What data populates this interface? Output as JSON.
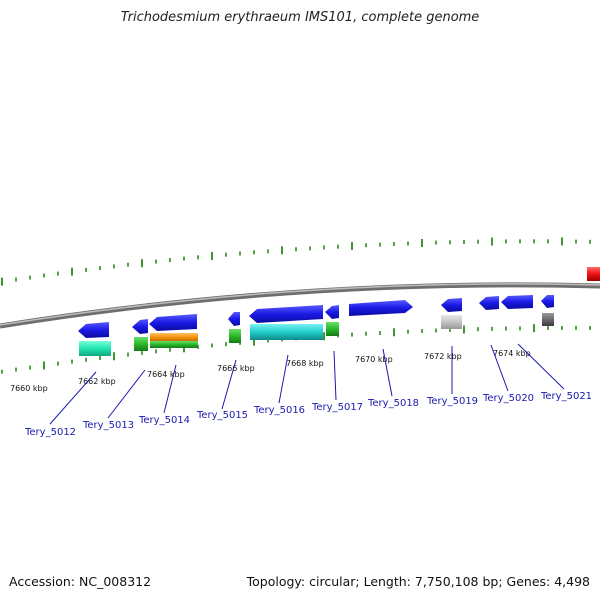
{
  "title": "Trichodesmium erythraeum IMS101, complete genome",
  "footer": {
    "accession": "Accession: NC_008312",
    "summary": "Topology: circular; Length: 7,750,108 bp; Genes: 4,498"
  },
  "colors": {
    "backbone": "#8a8a8a",
    "tick": "#2a8a1a",
    "gene_blue": "#1a1ae6",
    "label": "#1a1ab0",
    "marker_red": "#ee1111"
  },
  "ticks": {
    "labels": [
      "7660 kbp",
      "7662 kbp",
      "7664 kbp",
      "7666 kbp",
      "7668 kbp",
      "7670 kbp",
      "7672 kbp",
      "7674 kbp"
    ]
  },
  "genes": [
    {
      "name": "Tery_5012"
    },
    {
      "name": "Tery_5013"
    },
    {
      "name": "Tery_5014"
    },
    {
      "name": "Tery_5015"
    },
    {
      "name": "Tery_5016"
    },
    {
      "name": "Tery_5017"
    },
    {
      "name": "Tery_5018"
    },
    {
      "name": "Tery_5019"
    },
    {
      "name": "Tery_5020"
    },
    {
      "name": "Tery_5021"
    }
  ]
}
